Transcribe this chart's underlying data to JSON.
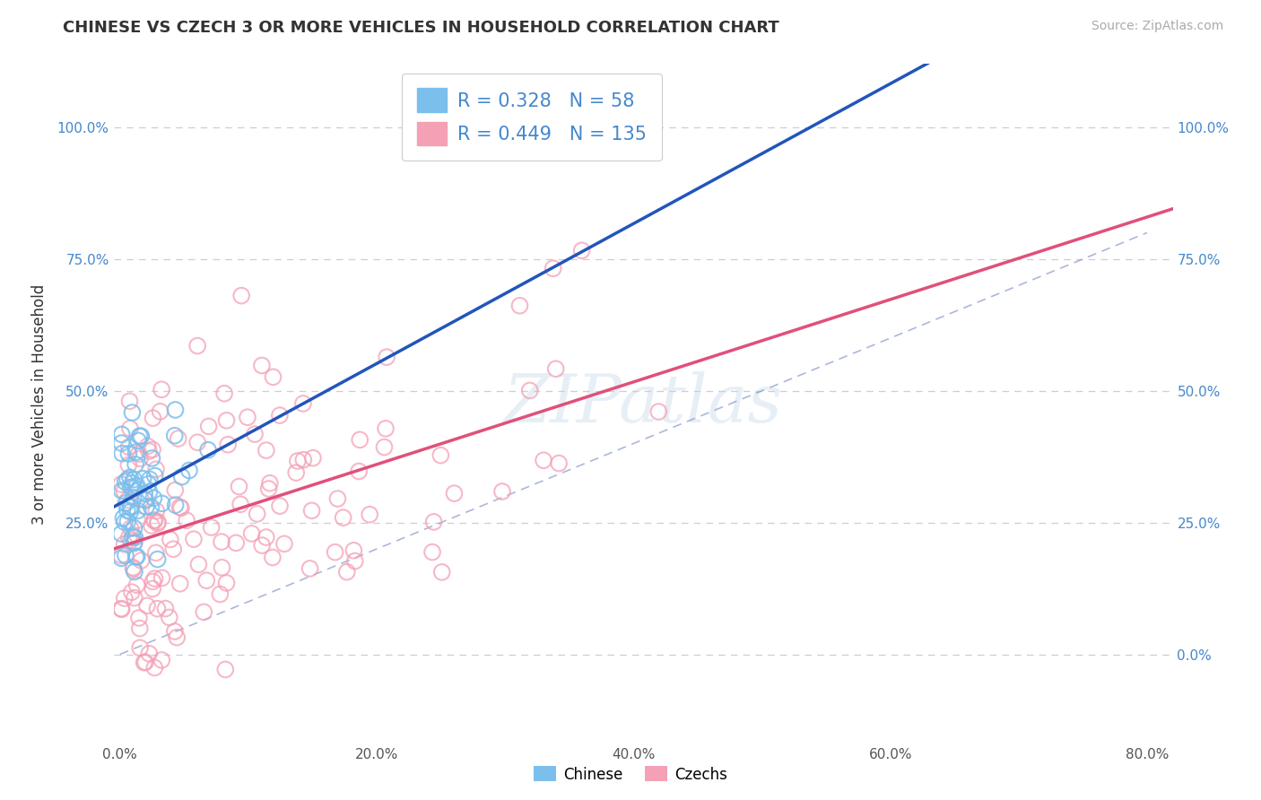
{
  "title": "CHINESE VS CZECH 3 OR MORE VEHICLES IN HOUSEHOLD CORRELATION CHART",
  "source": "Source: ZipAtlas.com",
  "ylabel": "3 or more Vehicles in Household",
  "chinese_color": "#7bbfed",
  "czech_color": "#f4a0b5",
  "chinese_trend_color": "#2255bb",
  "czech_trend_color": "#e0507a",
  "diag_color": "#8899cc",
  "grid_color": "#ccccdd",
  "chinese_R": 0.328,
  "chinese_N": 58,
  "czech_R": 0.449,
  "czech_N": 135,
  "watermark": "ZIPatlas",
  "xlim": [
    -0.005,
    0.82
  ],
  "ylim": [
    -0.17,
    1.12
  ],
  "xticks": [
    0.0,
    0.2,
    0.4,
    0.6,
    0.8
  ],
  "yticks": [
    0.0,
    0.25,
    0.5,
    0.75,
    1.0
  ],
  "xticklabels": [
    "0.0%",
    "20.0%",
    "40.0%",
    "60.0%",
    "80.0%"
  ],
  "yticklabels_left": [
    "",
    "25.0%",
    "50.0%",
    "75.0%",
    "100.0%"
  ],
  "yticklabels_right": [
    "0.0%",
    "25.0%",
    "50.0%",
    "75.0%",
    "100.0%"
  ]
}
